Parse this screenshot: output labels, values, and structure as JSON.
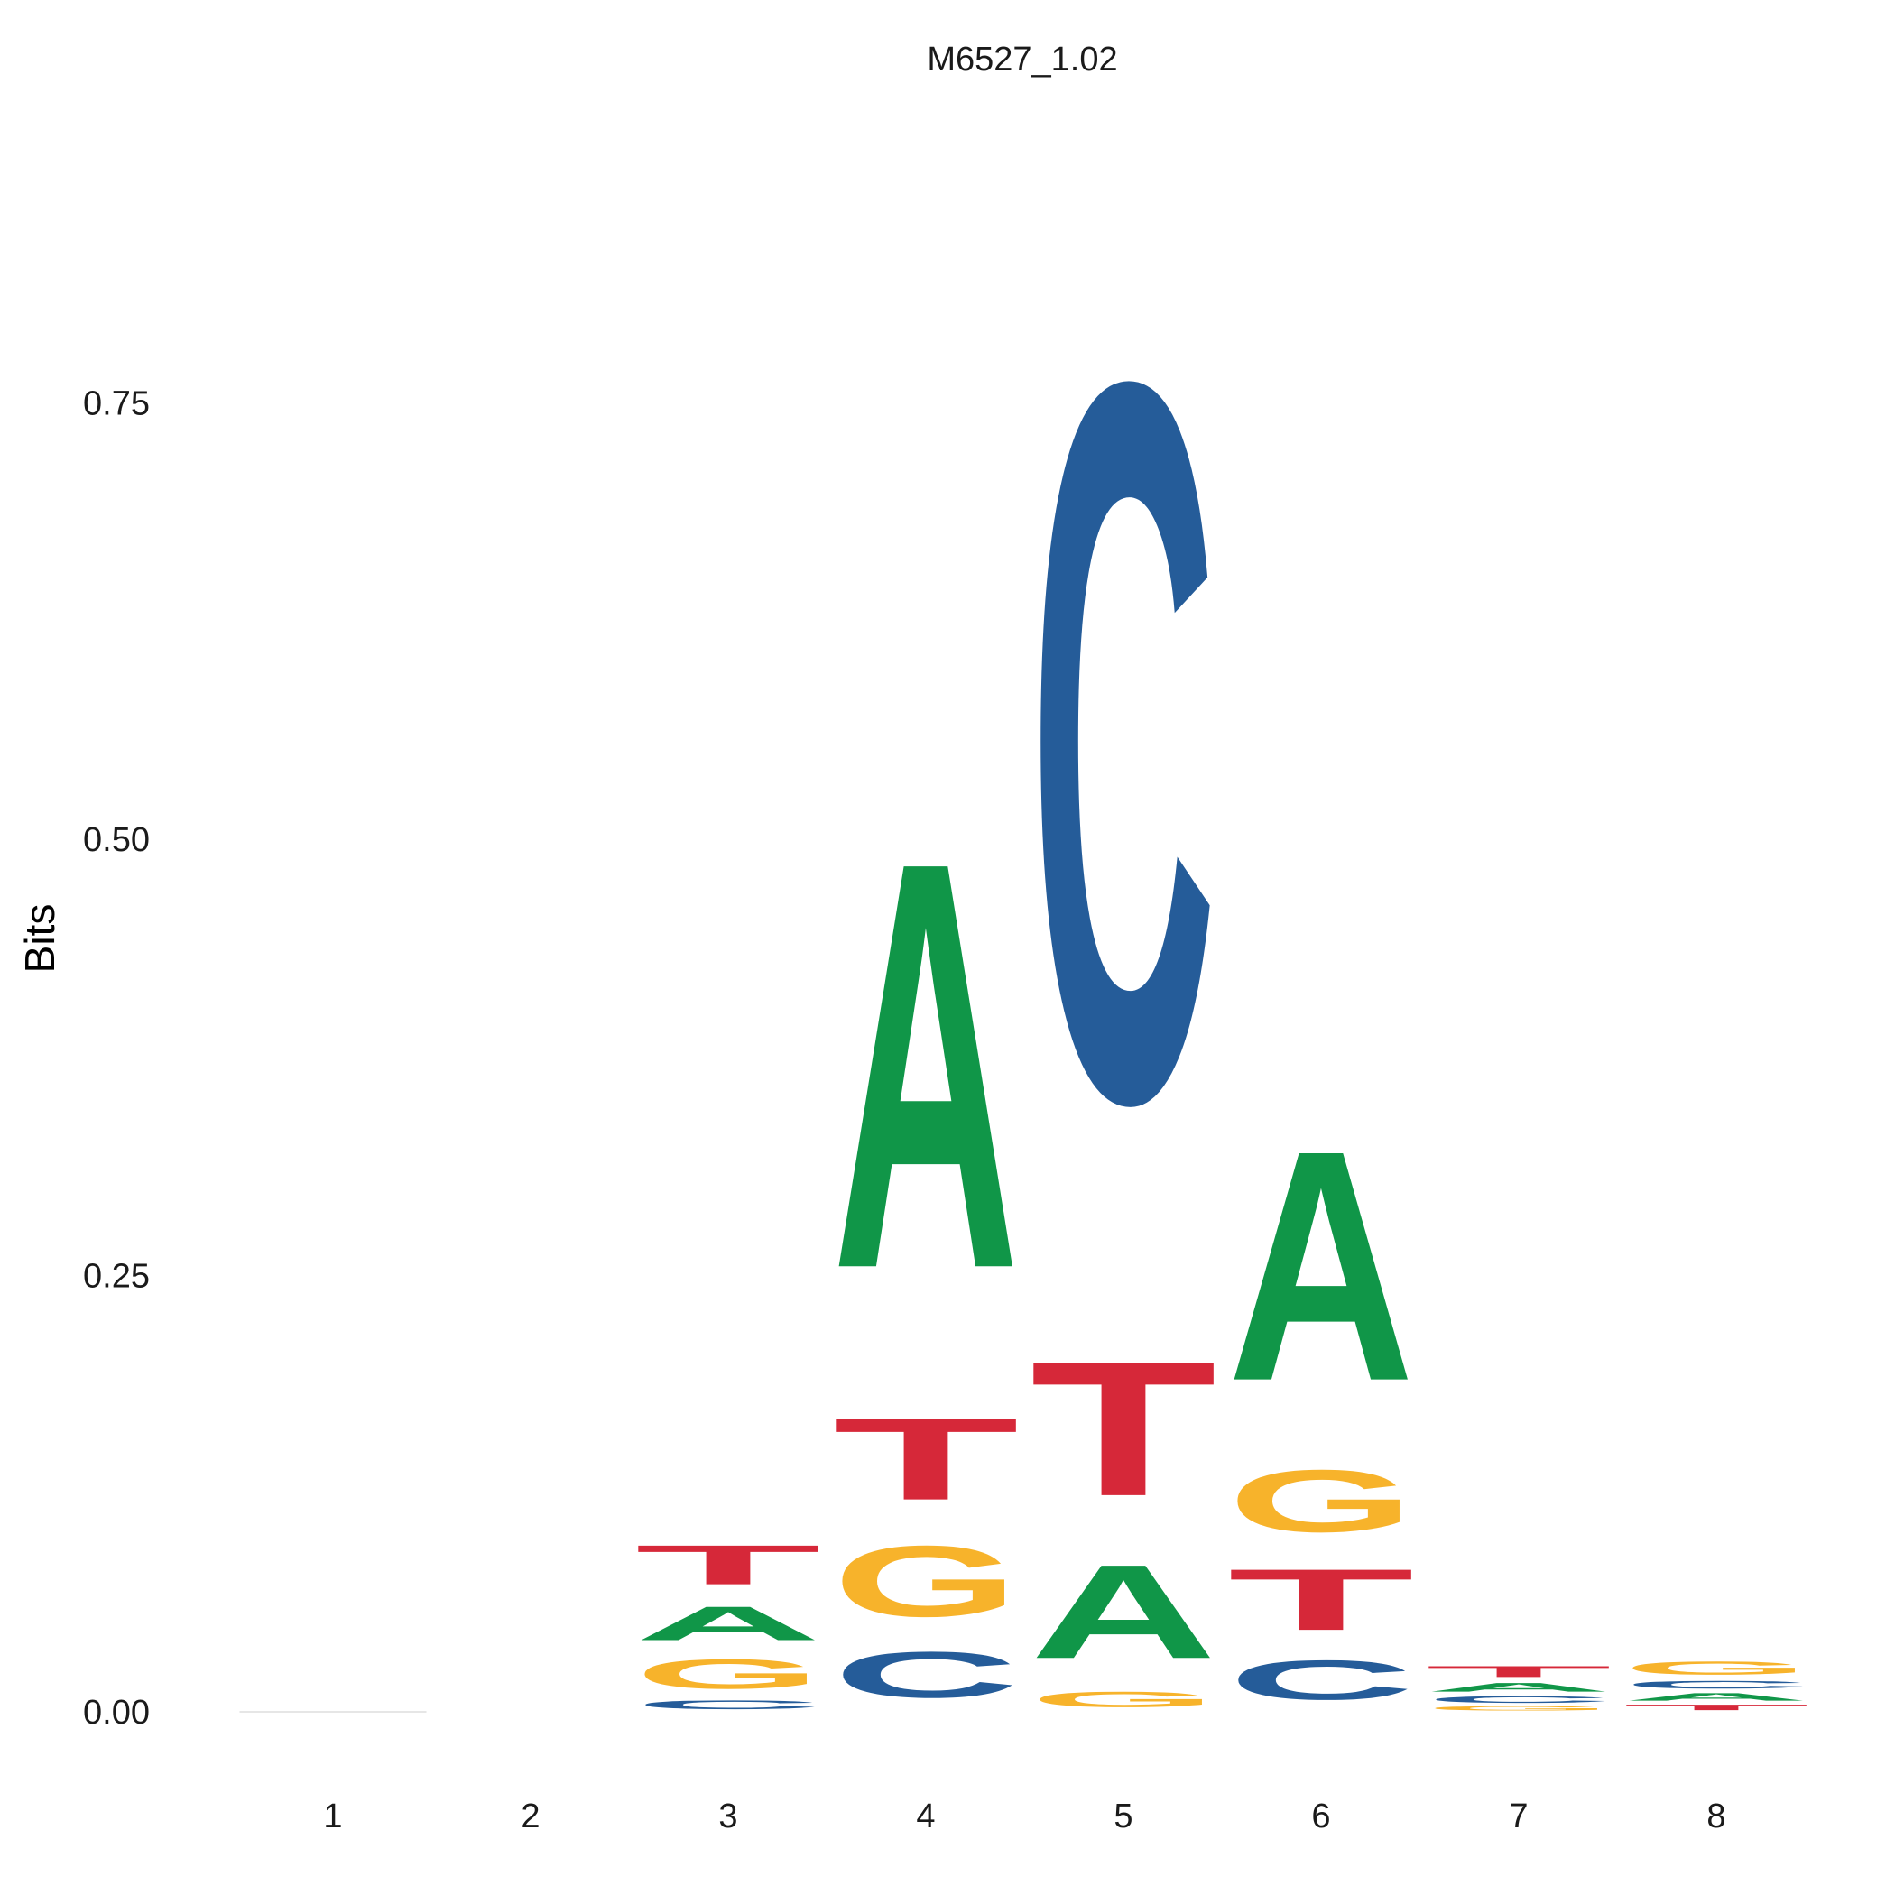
{
  "chart_data": {
    "type": "sequence-logo",
    "title": "M6527_1.02",
    "ylabel": "Bits",
    "xlabel": "",
    "ylim": [
      -0.03,
      0.92
    ],
    "yticks": [
      "0.00",
      "0.25",
      "0.50",
      "0.75"
    ],
    "ytick_values": [
      0,
      0.25,
      0.5,
      0.75
    ],
    "positions": [
      "1",
      "2",
      "3",
      "4",
      "5",
      "6",
      "7",
      "8"
    ],
    "colors": {
      "A": "#109648",
      "C": "#255C99",
      "G": "#F7B32B",
      "T": "#D62839"
    },
    "stacks": [
      [],
      [],
      [
        {
          "base": "C",
          "bits": 0.008
        },
        {
          "base": "G",
          "bits": 0.027
        },
        {
          "base": "A",
          "bits": 0.031
        },
        {
          "base": "T",
          "bits": 0.036
        }
      ],
      [
        {
          "base": "C",
          "bits": 0.042
        },
        {
          "base": "G",
          "bits": 0.065
        },
        {
          "base": "T",
          "bits": 0.075
        },
        {
          "base": "A",
          "bits": 0.373
        }
      ],
      [
        {
          "base": "G",
          "bits": 0.014
        },
        {
          "base": "A",
          "bits": 0.086
        },
        {
          "base": "T",
          "bits": 0.123
        },
        {
          "base": "C",
          "bits": 0.658
        }
      ],
      [
        {
          "base": "C",
          "bits": 0.036
        },
        {
          "base": "T",
          "bits": 0.056
        },
        {
          "base": "G",
          "bits": 0.057
        },
        {
          "base": "A",
          "bits": 0.211
        }
      ],
      [
        {
          "base": "G",
          "bits": 0.004
        },
        {
          "base": "C",
          "bits": 0.006
        },
        {
          "base": "A",
          "bits": 0.008
        },
        {
          "base": "T",
          "bits": 0.01
        }
      ],
      [
        {
          "base": "T",
          "bits": 0.005
        },
        {
          "base": "A",
          "bits": 0.007
        },
        {
          "base": "C",
          "bits": 0.007
        },
        {
          "base": "G",
          "bits": 0.012
        }
      ]
    ]
  }
}
